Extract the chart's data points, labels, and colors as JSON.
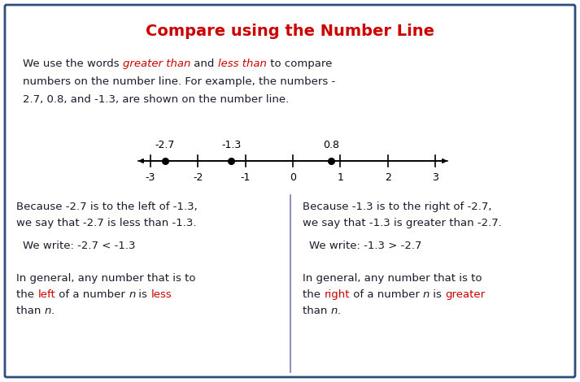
{
  "title": "Compare using the Number Line",
  "title_color": "#cc0000",
  "title_fontsize": 14,
  "background_color": "#ffffff",
  "border_color": "#2e4d7b",
  "number_line": {
    "xmin": -3,
    "xmax": 3,
    "ticks": [
      -3,
      -2,
      -1,
      0,
      1,
      2,
      3
    ],
    "tick_labels": [
      "-3",
      "-2",
      "-1",
      "0",
      "1",
      "2",
      "3"
    ],
    "points": [
      -2.7,
      -1.3,
      0.8
    ],
    "point_labels": [
      "-2.7",
      "-1.3",
      "0.8"
    ]
  },
  "text_fontsize": 9.5,
  "small_fontsize": 9,
  "divider_color": "#7a7ab8",
  "text_color": "#1a1a2e",
  "red_color": "#cc0000"
}
